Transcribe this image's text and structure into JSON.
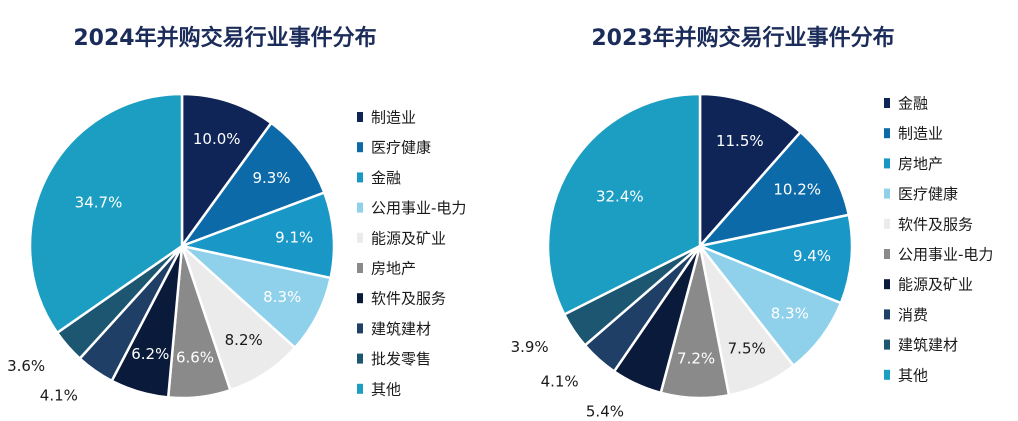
{
  "colors": {
    "title": "#1b2c5a",
    "palette": {
      "dark_navy": "#0f2558",
      "blue": "#0d6aa8",
      "teal": "#1997c6",
      "light_blue": "#8fd0ea",
      "light_gray": "#ebebeb",
      "gray": "#8a8a8a",
      "navy": "#0a1a3a",
      "slate_blue": "#1f3f66",
      "dark_teal": "#1c5670",
      "cyan": "#1c9ec2"
    }
  },
  "chart_data": [
    {
      "type": "pie",
      "title": "2024年并购交易行业事件分布",
      "legend_position": "right",
      "slices": [
        {
          "name": "制造业",
          "value": 10.0,
          "label": "10.0%",
          "color": "#0f2558",
          "label_color": "#ffffff",
          "label_outside": false
        },
        {
          "name": "医疗健康",
          "value": 9.3,
          "label": "9.3%",
          "color": "#0d6aa8",
          "label_color": "#ffffff",
          "label_outside": false
        },
        {
          "name": "金融",
          "value": 9.1,
          "label": "9.1%",
          "color": "#1997c6",
          "label_color": "#ffffff",
          "label_outside": false
        },
        {
          "name": "公用事业-电力",
          "value": 8.3,
          "label": "8.3%",
          "color": "#8fd0ea",
          "label_color": "#ffffff",
          "label_outside": false
        },
        {
          "name": "能源及矿业",
          "value": 8.2,
          "label": "8.2%",
          "color": "#ebebeb",
          "label_color": "#1a1a1a",
          "label_outside": false
        },
        {
          "name": "房地产",
          "value": 6.6,
          "label": "6.6%",
          "color": "#8a8a8a",
          "label_color": "#ffffff",
          "label_outside": false
        },
        {
          "name": "软件及服务",
          "value": 6.2,
          "label": "6.2%",
          "color": "#0a1a3a",
          "label_color": "#ffffff",
          "label_outside": false
        },
        {
          "name": "建筑建材",
          "value": 4.1,
          "label": "4.1%",
          "color": "#1f3f66",
          "label_color": "#1a1a1a",
          "label_outside": true
        },
        {
          "name": "批发零售",
          "value": 3.6,
          "label": "3.6%",
          "color": "#1c5670",
          "label_color": "#1a1a1a",
          "label_outside": true
        },
        {
          "name": "其他",
          "value": 34.7,
          "label": "34.7%",
          "color": "#1c9ec2",
          "label_color": "#ffffff",
          "label_outside": false
        }
      ]
    },
    {
      "type": "pie",
      "title": "2023年并购交易行业事件分布",
      "legend_position": "right",
      "slices": [
        {
          "name": "金融",
          "value": 11.5,
          "label": "11.5%",
          "color": "#0f2558",
          "label_color": "#ffffff",
          "label_outside": false
        },
        {
          "name": "制造业",
          "value": 10.2,
          "label": "10.2%",
          "color": "#0d6aa8",
          "label_color": "#ffffff",
          "label_outside": false
        },
        {
          "name": "房地产",
          "value": 9.4,
          "label": "9.4%",
          "color": "#1997c6",
          "label_color": "#ffffff",
          "label_outside": false
        },
        {
          "name": "医疗健康",
          "value": 8.3,
          "label": "8.3%",
          "color": "#8fd0ea",
          "label_color": "#ffffff",
          "label_outside": false
        },
        {
          "name": "软件及服务",
          "value": 7.5,
          "label": "7.5%",
          "color": "#ebebeb",
          "label_color": "#1a1a1a",
          "label_outside": false
        },
        {
          "name": "公用事业-电力",
          "value": 7.2,
          "label": "7.2%",
          "color": "#8a8a8a",
          "label_color": "#ffffff",
          "label_outside": false
        },
        {
          "name": "能源及矿业",
          "value": 5.4,
          "label": "5.4%",
          "color": "#0a1a3a",
          "label_color": "#1a1a1a",
          "label_outside": true
        },
        {
          "name": "消费",
          "value": 4.1,
          "label": "4.1%",
          "color": "#1f3f66",
          "label_color": "#1a1a1a",
          "label_outside": true
        },
        {
          "name": "建筑建材",
          "value": 3.9,
          "label": "3.9%",
          "color": "#1c5670",
          "label_color": "#1a1a1a",
          "label_outside": true
        },
        {
          "name": "其他",
          "value": 32.4,
          "label": "32.4%",
          "color": "#1c9ec2",
          "label_color": "#ffffff",
          "label_outside": false
        }
      ]
    }
  ]
}
